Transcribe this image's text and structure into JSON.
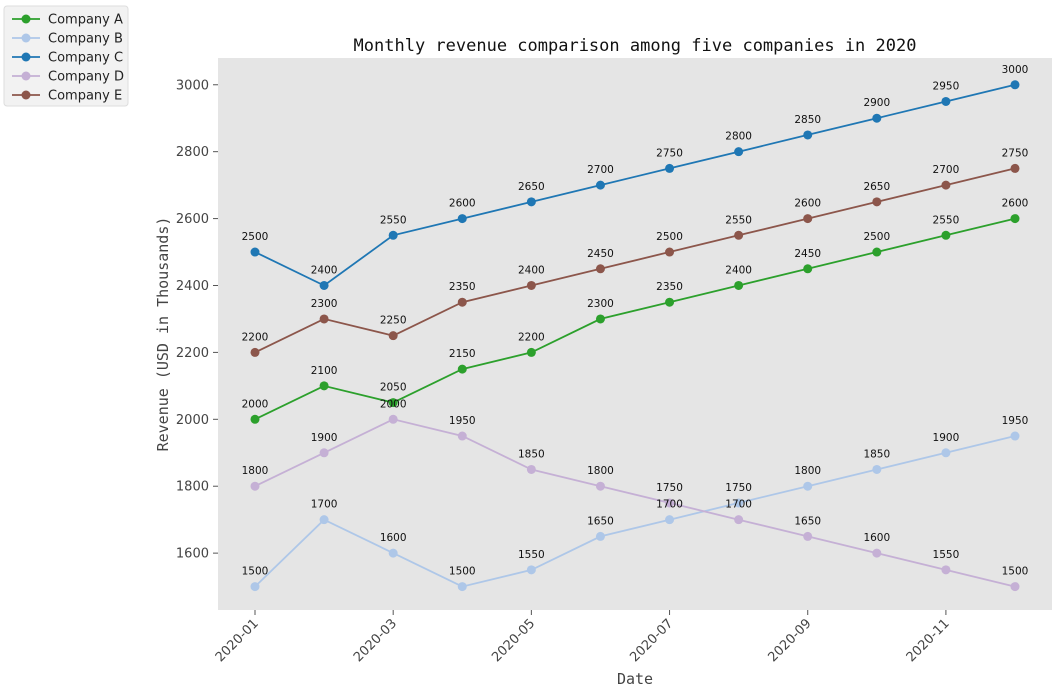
{
  "chart_data": {
    "type": "line",
    "title": "Monthly revenue comparison among five companies in 2020",
    "xlabel": "Date",
    "ylabel": "Revenue (USD in Thousands)",
    "x": [
      "2020-01",
      "2020-02",
      "2020-03",
      "2020-04",
      "2020-05",
      "2020-06",
      "2020-07",
      "2020-08",
      "2020-09",
      "2020-10",
      "2020-11",
      "2020-12"
    ],
    "x_tick_labels": [
      "2020-01",
      "2020-03",
      "2020-05",
      "2020-07",
      "2020-09",
      "2020-11"
    ],
    "y_ticks": [
      1600,
      1800,
      2000,
      2200,
      2400,
      2600,
      2800,
      3000
    ],
    "ylim": [
      1430,
      3080
    ],
    "grid": false,
    "legend_position": "top-left outside",
    "series": [
      {
        "name": "Company A",
        "color": "#2ca02c",
        "values": [
          2000,
          2100,
          2050,
          2150,
          2200,
          2300,
          2350,
          2400,
          2450,
          2500,
          2550,
          2600
        ]
      },
      {
        "name": "Company B",
        "color": "#aec7e8",
        "values": [
          1500,
          1700,
          1600,
          1500,
          1550,
          1650,
          1700,
          1750,
          1800,
          1850,
          1900,
          1950
        ]
      },
      {
        "name": "Company C",
        "color": "#1f77b4",
        "values": [
          2500,
          2400,
          2550,
          2600,
          2650,
          2700,
          2750,
          2800,
          2850,
          2900,
          2950,
          3000
        ]
      },
      {
        "name": "Company D",
        "color": "#c5b0d5",
        "values": [
          1800,
          1900,
          2000,
          1950,
          1850,
          1800,
          1750,
          1700,
          1650,
          1600,
          1550,
          1500
        ]
      },
      {
        "name": "Company E",
        "color": "#8c564b",
        "values": [
          2200,
          2300,
          2250,
          2350,
          2400,
          2450,
          2500,
          2550,
          2600,
          2650,
          2700,
          2750
        ]
      }
    ]
  }
}
